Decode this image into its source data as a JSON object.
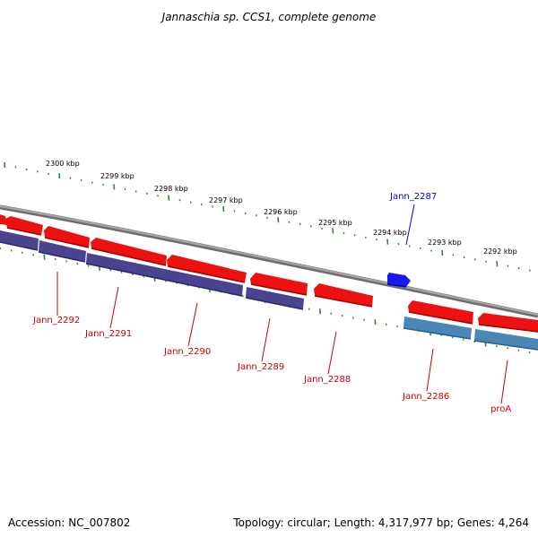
{
  "title": "Jannaschia sp. CCS1, complete genome",
  "accession": "Accession: NC_007802",
  "topology": "Topology: circular; Length: 4,317,977 bp; Genes: 4,264",
  "colors": {
    "backbone": "#8a8a8a",
    "tick": "#2f8a2f",
    "forward_gene": "#ee1111",
    "reverse_gene_dark": "#4a4390",
    "reverse_gene_light": "#4a86b6",
    "highlight_gene": "#1a1aee",
    "label_red": "#cc0000",
    "label_blue": "#0000cc"
  },
  "kbp_labels": [
    "2300 kbp",
    "2299 kbp",
    "2298 kbp",
    "2297 kbp",
    "2296 kbp",
    "2295 kbp",
    "2294 kbp",
    "2293 kbp",
    "2292 kbp"
  ],
  "genes": [
    {
      "label": "Jann_2292",
      "strand": "reverse",
      "color": "dark"
    },
    {
      "label": "Jann_2291",
      "strand": "reverse",
      "color": "dark"
    },
    {
      "label": "Jann_2290",
      "strand": "forward",
      "color": "red"
    },
    {
      "label": "Jann_2289",
      "strand": "reverse",
      "color": "dark"
    },
    {
      "label": "Jann_2288",
      "strand": "forward",
      "color": "red"
    },
    {
      "label": "Jann_2287",
      "strand": "forward",
      "color": "blue"
    },
    {
      "label": "Jann_2286",
      "strand": "reverse",
      "color": "light"
    },
    {
      "label": "proA",
      "strand": "reverse",
      "color": "light"
    }
  ]
}
